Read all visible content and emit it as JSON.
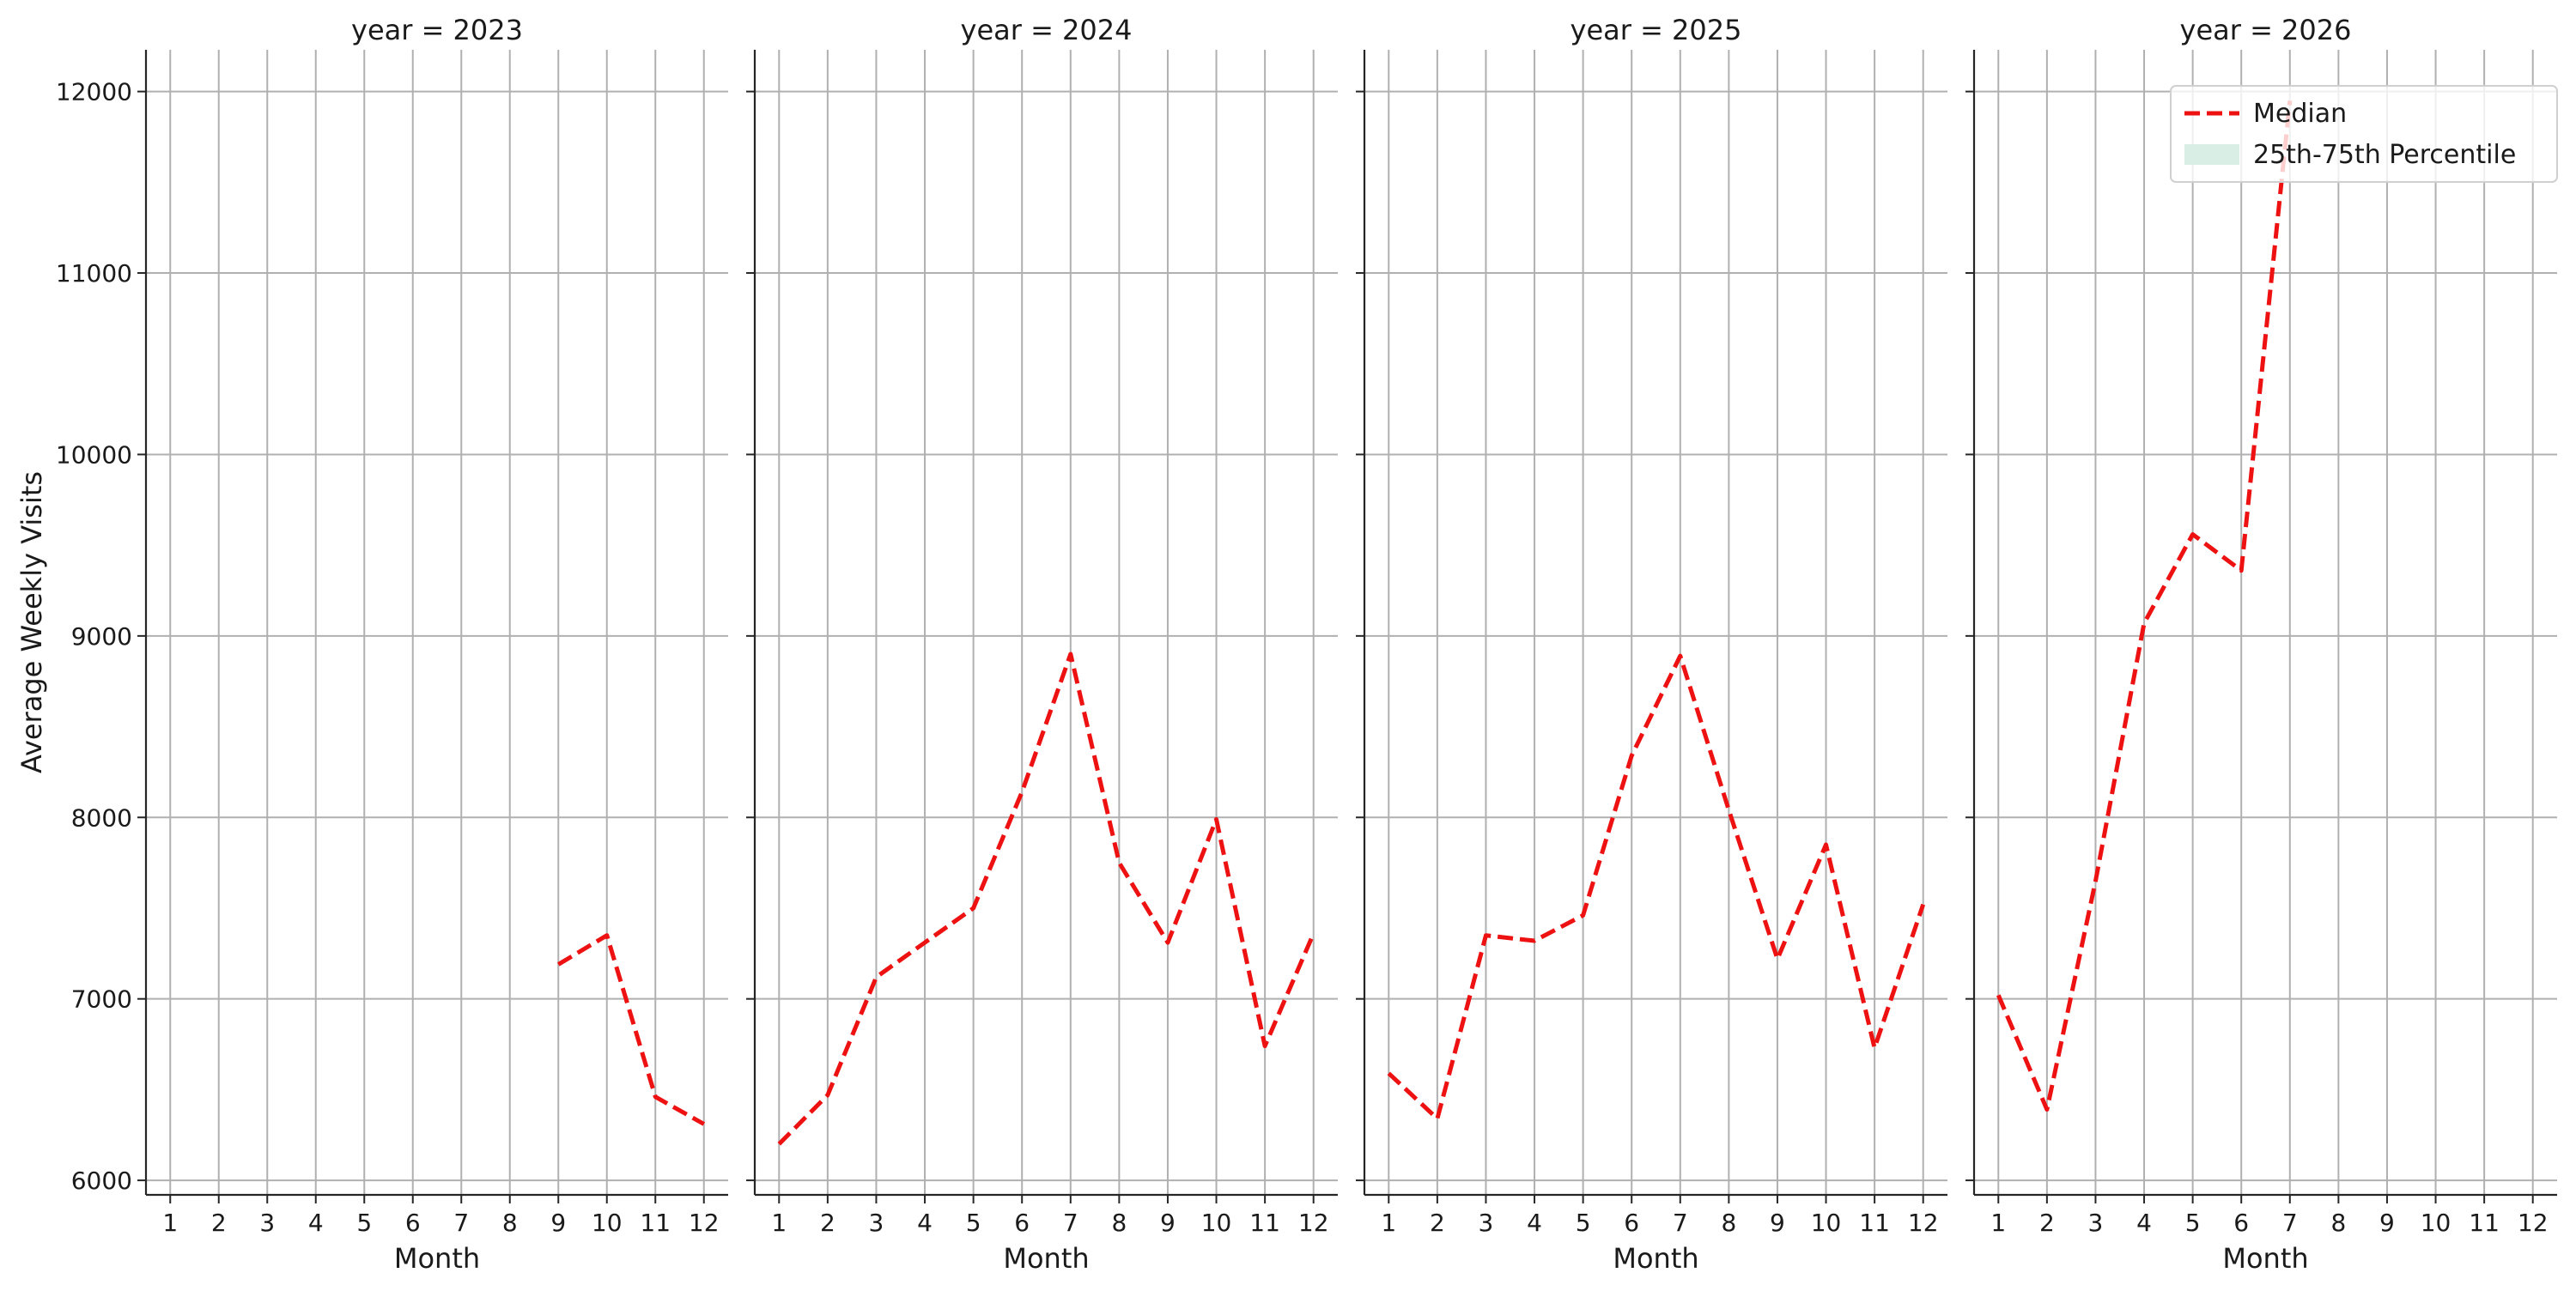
{
  "chart_data": {
    "type": "line",
    "layout": "facet-columns",
    "facet_variable": "year",
    "ylabel": "Average Weekly Visits",
    "xlabel": "Month",
    "ylim": [
      5920,
      12230
    ],
    "xlim": [
      0.5,
      12.5
    ],
    "yticks": [
      6000,
      7000,
      8000,
      9000,
      10000,
      11000,
      12000
    ],
    "xticks": [
      1,
      2,
      3,
      4,
      5,
      6,
      7,
      8,
      9,
      10,
      11,
      12
    ],
    "grid": true,
    "legend": {
      "placement": "top-right",
      "entries": [
        {
          "label": "Median",
          "style": "dashed-line",
          "color": "#ee1111"
        },
        {
          "label": "25th-75th Percentile",
          "style": "band",
          "color": "#d9efe6"
        }
      ]
    },
    "facets": [
      {
        "title": "year = 2023",
        "median": [
          [
            9,
            7190
          ],
          [
            10,
            7350
          ],
          [
            11,
            6460
          ],
          [
            12,
            6310
          ]
        ]
      },
      {
        "title": "year = 2024",
        "median": [
          [
            1,
            6200
          ],
          [
            2,
            6470
          ],
          [
            3,
            7120
          ],
          [
            4,
            7310
          ],
          [
            5,
            7500
          ],
          [
            6,
            8140
          ],
          [
            7,
            8900
          ],
          [
            8,
            7750
          ],
          [
            9,
            7310
          ],
          [
            10,
            7990
          ],
          [
            11,
            6740
          ],
          [
            12,
            7360
          ]
        ]
      },
      {
        "title": "year = 2025",
        "median": [
          [
            1,
            6590
          ],
          [
            2,
            6340
          ],
          [
            3,
            7350
          ],
          [
            4,
            7320
          ],
          [
            5,
            7460
          ],
          [
            6,
            8340
          ],
          [
            7,
            8890
          ],
          [
            8,
            8040
          ],
          [
            9,
            7220
          ],
          [
            10,
            7850
          ],
          [
            11,
            6730
          ],
          [
            12,
            7520
          ]
        ]
      },
      {
        "title": "year = 2026",
        "median": [
          [
            1,
            7020
          ],
          [
            2,
            6390
          ],
          [
            3,
            7650
          ],
          [
            4,
            9070
          ],
          [
            5,
            9560
          ],
          [
            6,
            9360
          ],
          [
            7,
            11950
          ]
        ]
      }
    ]
  }
}
